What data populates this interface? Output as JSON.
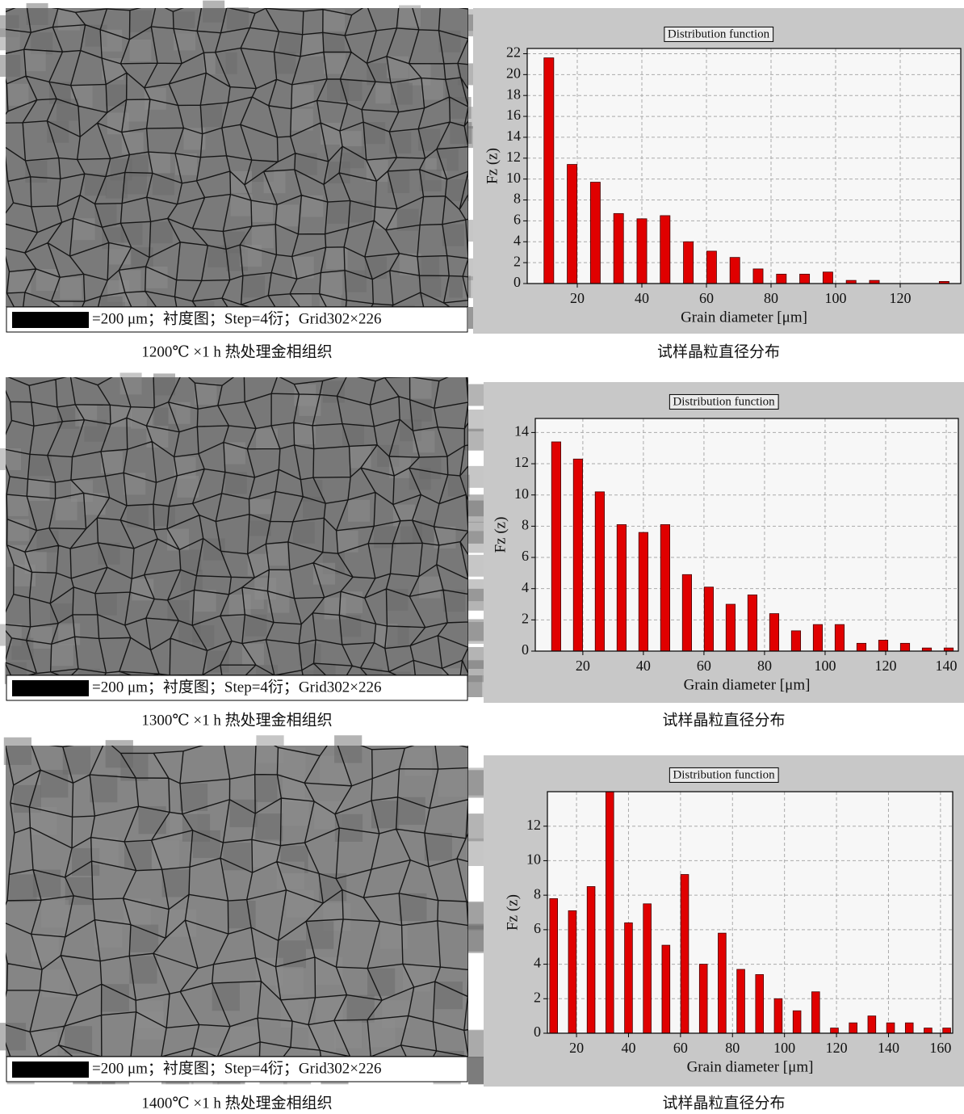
{
  "chart_data": [
    {
      "type": "bar",
      "title": "Distribution function",
      "xlabel": "Grain diameter [μm]",
      "ylabel": "Fz (z)",
      "caption": "试样晶粒直径分布",
      "x": [
        11.2,
        18.4,
        25.6,
        32.8,
        40.0,
        47.2,
        54.4,
        61.6,
        68.8,
        76.0,
        83.2,
        90.4,
        97.6,
        104.8,
        112.0,
        119.2,
        126.4,
        133.6
      ],
      "values": [
        21.6,
        11.4,
        9.7,
        6.7,
        6.2,
        6.5,
        4.0,
        3.1,
        2.5,
        1.4,
        0.9,
        0.9,
        1.1,
        0.3,
        0.3,
        0,
        0,
        0.2
      ],
      "xlim": [
        4.5,
        138.75
      ],
      "ylim": [
        0,
        22.5
      ],
      "xticks": [
        20,
        40,
        60,
        80,
        100,
        120
      ],
      "yticks": [
        0,
        2,
        4,
        6,
        8,
        10,
        12,
        14,
        16,
        18,
        20,
        22
      ],
      "color": "#e00000",
      "grid": true
    },
    {
      "type": "bar",
      "title": "Distribution function",
      "xlabel": "Grain diameter [μm]",
      "ylabel": "Fz (z)",
      "caption": "试样晶粒直径分布",
      "x": [
        11.2,
        18.4,
        25.6,
        32.8,
        40.0,
        47.2,
        54.4,
        61.6,
        68.8,
        76.0,
        83.2,
        90.4,
        97.6,
        104.8,
        112.0,
        119.2,
        126.4,
        133.6,
        140.8
      ],
      "values": [
        13.4,
        12.3,
        10.2,
        8.1,
        7.6,
        8.1,
        4.9,
        4.1,
        3.0,
        3.6,
        2.4,
        1.3,
        1.7,
        1.7,
        0.5,
        0.7,
        0.5,
        0.2,
        0.2
      ],
      "xlim": [
        4.3,
        144
      ],
      "ylim": [
        0,
        14.9
      ],
      "xticks": [
        20,
        40,
        60,
        80,
        100,
        120,
        140
      ],
      "yticks": [
        0,
        2,
        4,
        6,
        8,
        10,
        12,
        14
      ],
      "color": "#e00000",
      "grid": true
    },
    {
      "type": "bar",
      "title": "Distribution function",
      "xlabel": "Grain diameter [μm]",
      "ylabel": "Fz (z)",
      "caption": "试样晶粒直径分布",
      "x": [
        11.2,
        18.4,
        25.6,
        32.8,
        40.0,
        47.2,
        54.4,
        61.6,
        68.8,
        76.0,
        83.2,
        90.4,
        97.6,
        104.8,
        112.0,
        119.2,
        126.4,
        133.6,
        140.8,
        148.0,
        155.2,
        162.4
      ],
      "values": [
        7.8,
        7.1,
        8.5,
        14.0,
        6.4,
        7.5,
        5.1,
        9.2,
        4.0,
        5.8,
        3.7,
        3.4,
        2.0,
        1.3,
        2.4,
        0.3,
        0.6,
        1.0,
        0.6,
        0.6,
        0.3,
        0.3
      ],
      "xlim": [
        8.8,
        164.7
      ],
      "ylim": [
        0,
        14
      ],
      "xticks": [
        20,
        40,
        60,
        80,
        100,
        120,
        140,
        160
      ],
      "yticks": [
        0,
        2,
        4,
        6,
        8,
        10,
        12
      ],
      "color": "#e00000",
      "grid": true
    }
  ],
  "micrographs": [
    {
      "scale_text": "=200 μm；衬度图；Step=4衍；Grid302×226",
      "caption": "1200℃ ×1 h 热处理金相组织"
    },
    {
      "scale_text": "=200 μm；衬度图；Step=4衍；Grid302×226",
      "caption": "1300℃ ×1 h 热处理金相组织"
    },
    {
      "scale_text": "=200 μm；衬度图；Step=4衍；Grid302×226",
      "caption": "1400℃ ×1 h 热处理金相组织"
    }
  ]
}
